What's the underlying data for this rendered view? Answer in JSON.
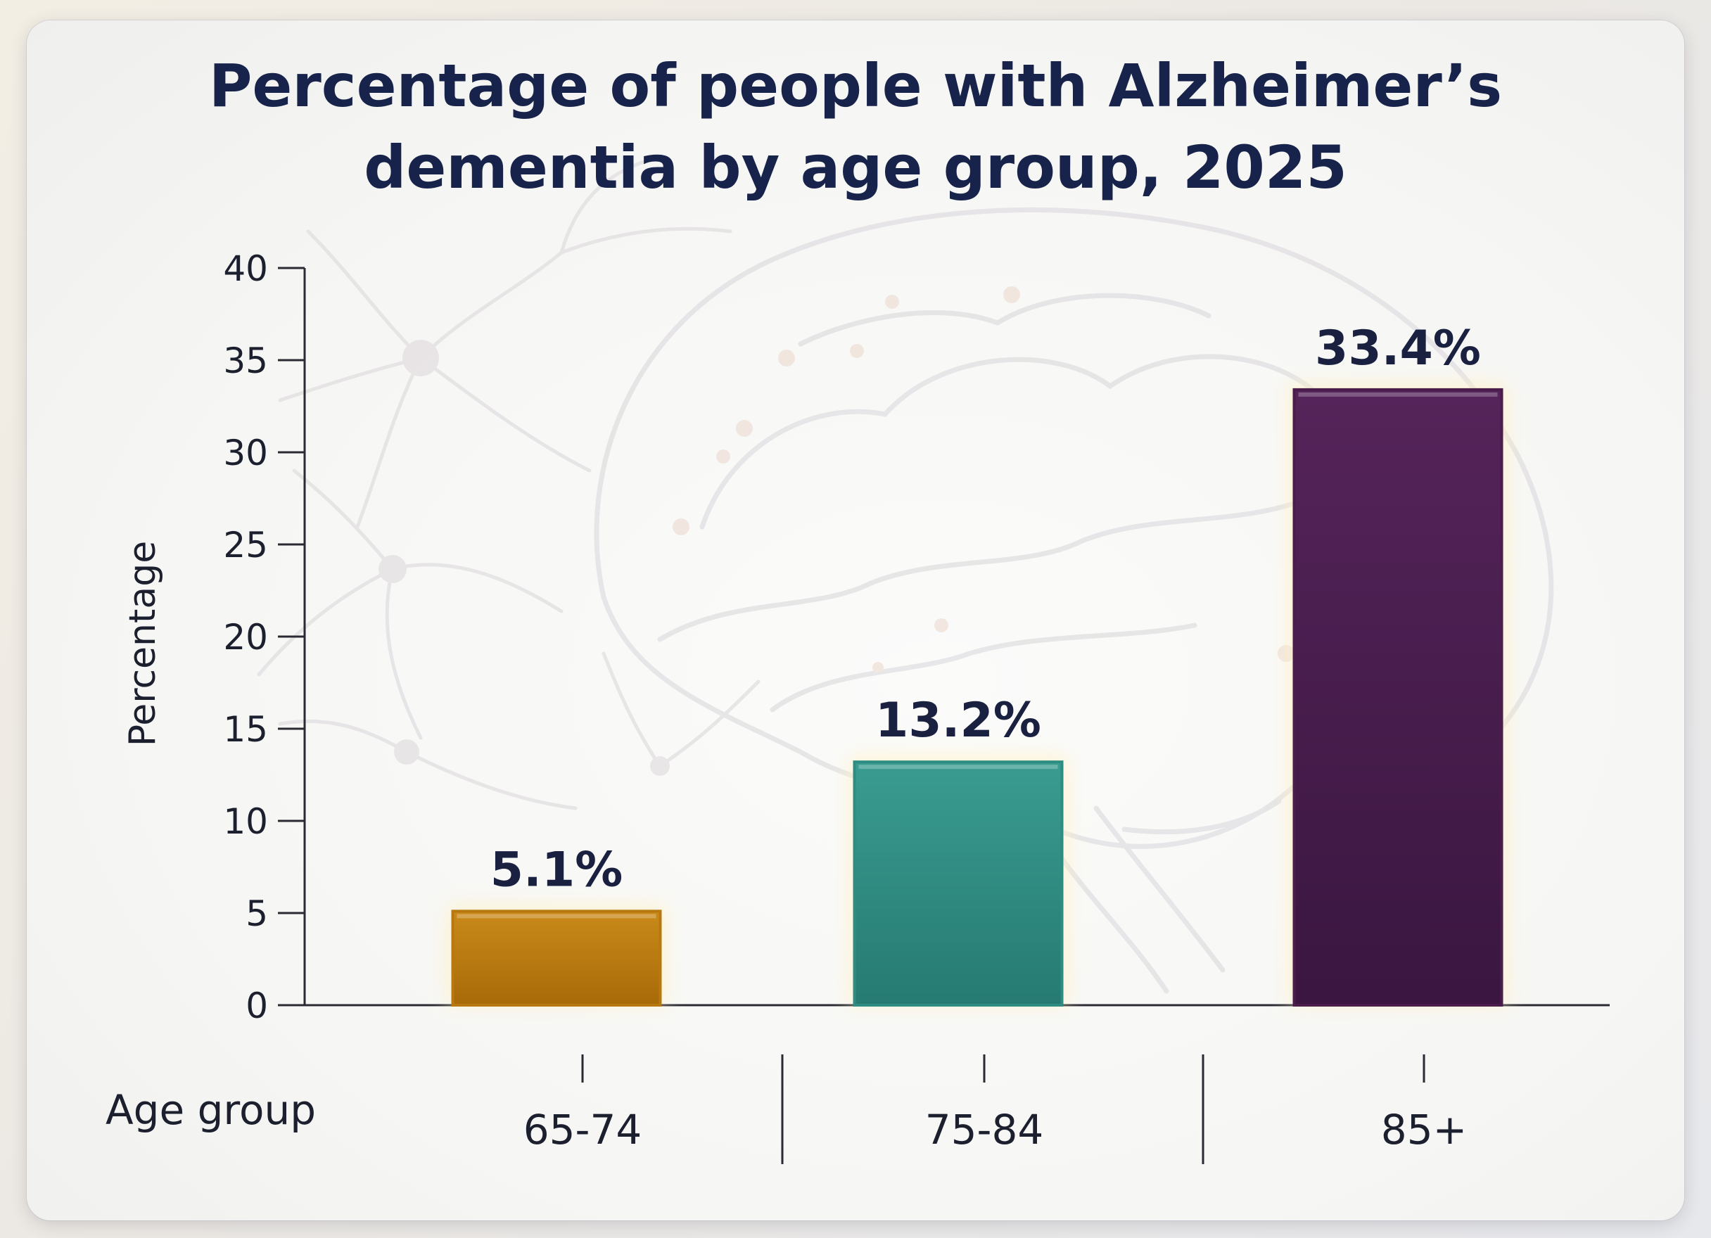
{
  "chart_data": {
    "type": "bar",
    "title_lines": [
      "Percentage of people with Alzheimer’s",
      "dementia by age group, 2025"
    ],
    "xlabel": "Age group",
    "ylabel": "Percentage",
    "categories": [
      "65-74",
      "75-84",
      "85+"
    ],
    "values": [
      5.1,
      13.2,
      33.4
    ],
    "value_labels": [
      "5.1%",
      "13.2%",
      "33.4%"
    ],
    "bar_colors": [
      "#b7790f",
      "#2f8c82",
      "#4a1d4b"
    ],
    "ylim": [
      0,
      40
    ],
    "yticks": [
      0,
      5,
      10,
      15,
      20,
      25,
      30,
      35,
      40
    ],
    "ytick_labels": [
      "0",
      "5",
      "10",
      "15",
      "20",
      "25",
      "30",
      "35",
      "40"
    ],
    "grid": false,
    "legend": "none",
    "background_art": "faint brain and neuron illustration"
  }
}
